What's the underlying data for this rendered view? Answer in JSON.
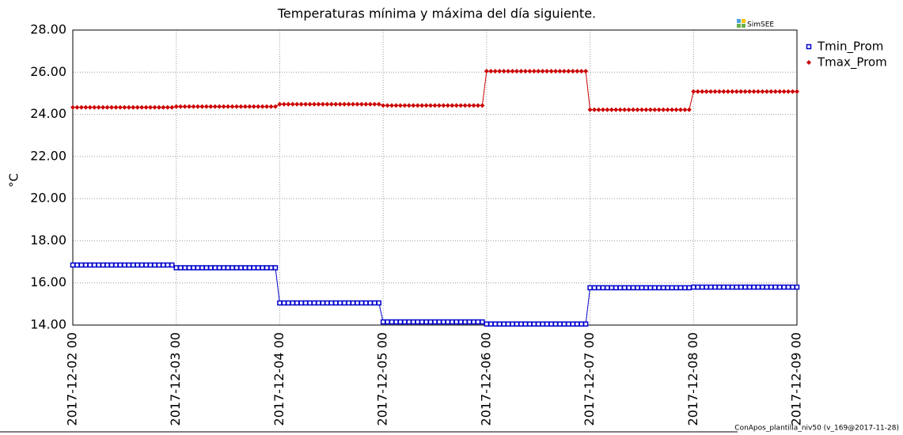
{
  "chart_data": {
    "type": "line",
    "title": "Temperaturas mínima y máxima del día siguiente.",
    "y_label": "°C",
    "logo": "SimSEE",
    "footer": "ConApos_plantilla_niv50 (v_169@2017-11-28)",
    "x": [
      "2017-12-02 00",
      "2017-12-02 01",
      "2017-12-02 02",
      "2017-12-02 03",
      "2017-12-02 04",
      "2017-12-02 05",
      "2017-12-02 06",
      "2017-12-02 07",
      "2017-12-02 08",
      "2017-12-02 09",
      "2017-12-02 10",
      "2017-12-02 11",
      "2017-12-02 12",
      "2017-12-02 13",
      "2017-12-02 14",
      "2017-12-02 15",
      "2017-12-02 16",
      "2017-12-02 17",
      "2017-12-02 18",
      "2017-12-02 19",
      "2017-12-02 20",
      "2017-12-02 21",
      "2017-12-02 22",
      "2017-12-02 23",
      "2017-12-03 00",
      "2017-12-03 01",
      "2017-12-03 02",
      "2017-12-03 03",
      "2017-12-03 04",
      "2017-12-03 05",
      "2017-12-03 06",
      "2017-12-03 07",
      "2017-12-03 08",
      "2017-12-03 09",
      "2017-12-03 10",
      "2017-12-03 11",
      "2017-12-03 12",
      "2017-12-03 13",
      "2017-12-03 14",
      "2017-12-03 15",
      "2017-12-03 16",
      "2017-12-03 17",
      "2017-12-03 18",
      "2017-12-03 19",
      "2017-12-03 20",
      "2017-12-03 21",
      "2017-12-03 22",
      "2017-12-03 23",
      "2017-12-04 00",
      "2017-12-04 01",
      "2017-12-04 02",
      "2017-12-04 03",
      "2017-12-04 04",
      "2017-12-04 05",
      "2017-12-04 06",
      "2017-12-04 07",
      "2017-12-04 08",
      "2017-12-04 09",
      "2017-12-04 10",
      "2017-12-04 11",
      "2017-12-04 12",
      "2017-12-04 13",
      "2017-12-04 14",
      "2017-12-04 15",
      "2017-12-04 16",
      "2017-12-04 17",
      "2017-12-04 18",
      "2017-12-04 19",
      "2017-12-04 20",
      "2017-12-04 21",
      "2017-12-04 22",
      "2017-12-04 23",
      "2017-12-05 00",
      "2017-12-05 01",
      "2017-12-05 02",
      "2017-12-05 03",
      "2017-12-05 04",
      "2017-12-05 05",
      "2017-12-05 06",
      "2017-12-05 07",
      "2017-12-05 08",
      "2017-12-05 09",
      "2017-12-05 10",
      "2017-12-05 11",
      "2017-12-05 12",
      "2017-12-05 13",
      "2017-12-05 14",
      "2017-12-05 15",
      "2017-12-05 16",
      "2017-12-05 17",
      "2017-12-05 18",
      "2017-12-05 19",
      "2017-12-05 20",
      "2017-12-05 21",
      "2017-12-05 22",
      "2017-12-05 23",
      "2017-12-06 00",
      "2017-12-06 01",
      "2017-12-06 02",
      "2017-12-06 03",
      "2017-12-06 04",
      "2017-12-06 05",
      "2017-12-06 06",
      "2017-12-06 07",
      "2017-12-06 08",
      "2017-12-06 09",
      "2017-12-06 10",
      "2017-12-06 11",
      "2017-12-06 12",
      "2017-12-06 13",
      "2017-12-06 14",
      "2017-12-06 15",
      "2017-12-06 16",
      "2017-12-06 17",
      "2017-12-06 18",
      "2017-12-06 19",
      "2017-12-06 20",
      "2017-12-06 21",
      "2017-12-06 22",
      "2017-12-06 23",
      "2017-12-07 00",
      "2017-12-07 01",
      "2017-12-07 02",
      "2017-12-07 03",
      "2017-12-07 04",
      "2017-12-07 05",
      "2017-12-07 06",
      "2017-12-07 07",
      "2017-12-07 08",
      "2017-12-07 09",
      "2017-12-07 10",
      "2017-12-07 11",
      "2017-12-07 12",
      "2017-12-07 13",
      "2017-12-07 14",
      "2017-12-07 15",
      "2017-12-07 16",
      "2017-12-07 17",
      "2017-12-07 18",
      "2017-12-07 19",
      "2017-12-07 20",
      "2017-12-07 21",
      "2017-12-07 22",
      "2017-12-07 23",
      "2017-12-08 00",
      "2017-12-08 01",
      "2017-12-08 02",
      "2017-12-08 03",
      "2017-12-08 04",
      "2017-12-08 05",
      "2017-12-08 06",
      "2017-12-08 07",
      "2017-12-08 08",
      "2017-12-08 09",
      "2017-12-08 10",
      "2017-12-08 11",
      "2017-12-08 12",
      "2017-12-08 13",
      "2017-12-08 14",
      "2017-12-08 15",
      "2017-12-08 16",
      "2017-12-08 17",
      "2017-12-08 18",
      "2017-12-08 19",
      "2017-12-08 20",
      "2017-12-08 21",
      "2017-12-08 22",
      "2017-12-08 23",
      "2017-12-09 00"
    ],
    "series": [
      {
        "name": "Tmin_Prom",
        "color": "#0000cc",
        "marker": "square",
        "values": [
          16.85,
          16.85,
          16.85,
          16.85,
          16.85,
          16.85,
          16.85,
          16.85,
          16.85,
          16.85,
          16.85,
          16.85,
          16.85,
          16.85,
          16.85,
          16.85,
          16.85,
          16.85,
          16.85,
          16.85,
          16.85,
          16.85,
          16.85,
          16.85,
          16.72,
          16.72,
          16.72,
          16.72,
          16.72,
          16.72,
          16.72,
          16.72,
          16.72,
          16.72,
          16.72,
          16.72,
          16.72,
          16.72,
          16.72,
          16.72,
          16.72,
          16.72,
          16.72,
          16.72,
          16.72,
          16.72,
          16.72,
          16.72,
          15.05,
          15.05,
          15.05,
          15.05,
          15.05,
          15.05,
          15.05,
          15.05,
          15.05,
          15.05,
          15.05,
          15.05,
          15.05,
          15.05,
          15.05,
          15.05,
          15.05,
          15.05,
          15.05,
          15.05,
          15.05,
          15.05,
          15.05,
          15.05,
          14.15,
          14.15,
          14.15,
          14.15,
          14.15,
          14.15,
          14.15,
          14.15,
          14.15,
          14.15,
          14.15,
          14.15,
          14.15,
          14.15,
          14.15,
          14.15,
          14.15,
          14.15,
          14.15,
          14.15,
          14.15,
          14.15,
          14.15,
          14.15,
          14.05,
          14.05,
          14.05,
          14.05,
          14.05,
          14.05,
          14.05,
          14.05,
          14.05,
          14.05,
          14.05,
          14.05,
          14.05,
          14.05,
          14.05,
          14.05,
          14.05,
          14.05,
          14.05,
          14.05,
          14.05,
          14.05,
          14.05,
          14.05,
          15.77,
          15.77,
          15.77,
          15.77,
          15.77,
          15.77,
          15.77,
          15.77,
          15.77,
          15.77,
          15.77,
          15.77,
          15.77,
          15.77,
          15.77,
          15.77,
          15.77,
          15.77,
          15.77,
          15.77,
          15.77,
          15.77,
          15.77,
          15.77,
          15.8,
          15.8,
          15.8,
          15.8,
          15.8,
          15.8,
          15.8,
          15.8,
          15.8,
          15.8,
          15.8,
          15.8,
          15.8,
          15.8,
          15.8,
          15.8,
          15.8,
          15.8,
          15.8,
          15.8,
          15.8,
          15.8,
          15.8,
          15.8,
          15.8
        ]
      },
      {
        "name": "Tmax_Prom",
        "color": "#cc0000",
        "marker": "diamond",
        "values": [
          24.33,
          24.33,
          24.33,
          24.33,
          24.33,
          24.33,
          24.33,
          24.33,
          24.33,
          24.33,
          24.33,
          24.33,
          24.33,
          24.33,
          24.33,
          24.33,
          24.33,
          24.33,
          24.33,
          24.33,
          24.33,
          24.33,
          24.33,
          24.33,
          24.37,
          24.37,
          24.37,
          24.37,
          24.37,
          24.37,
          24.37,
          24.37,
          24.37,
          24.37,
          24.37,
          24.37,
          24.37,
          24.37,
          24.37,
          24.37,
          24.37,
          24.37,
          24.37,
          24.37,
          24.37,
          24.37,
          24.37,
          24.37,
          24.48,
          24.48,
          24.48,
          24.48,
          24.48,
          24.48,
          24.48,
          24.48,
          24.48,
          24.48,
          24.48,
          24.48,
          24.48,
          24.48,
          24.48,
          24.48,
          24.48,
          24.48,
          24.48,
          24.48,
          24.48,
          24.48,
          24.48,
          24.48,
          24.42,
          24.42,
          24.42,
          24.42,
          24.42,
          24.42,
          24.42,
          24.42,
          24.42,
          24.42,
          24.42,
          24.42,
          24.42,
          24.42,
          24.42,
          24.42,
          24.42,
          24.42,
          24.42,
          24.42,
          24.42,
          24.42,
          24.42,
          24.42,
          26.05,
          26.05,
          26.05,
          26.05,
          26.05,
          26.05,
          26.05,
          26.05,
          26.05,
          26.05,
          26.05,
          26.05,
          26.05,
          26.05,
          26.05,
          26.05,
          26.05,
          26.05,
          26.05,
          26.05,
          26.05,
          26.05,
          26.05,
          26.05,
          24.22,
          24.22,
          24.22,
          24.22,
          24.22,
          24.22,
          24.22,
          24.22,
          24.22,
          24.22,
          24.22,
          24.22,
          24.22,
          24.22,
          24.22,
          24.22,
          24.22,
          24.22,
          24.22,
          24.22,
          24.22,
          24.22,
          24.22,
          24.22,
          25.08,
          25.08,
          25.08,
          25.08,
          25.08,
          25.08,
          25.08,
          25.08,
          25.08,
          25.08,
          25.08,
          25.08,
          25.08,
          25.08,
          25.08,
          25.08,
          25.08,
          25.08,
          25.08,
          25.08,
          25.08,
          25.08,
          25.08,
          25.08,
          25.08
        ]
      }
    ],
    "xtick_indices": [
      0,
      24,
      48,
      72,
      96,
      120,
      144,
      168
    ],
    "ylim": [
      14,
      28
    ],
    "yticks": [
      {
        "value": 14,
        "label": "14.00"
      },
      {
        "value": 16,
        "label": "16.00"
      },
      {
        "value": 18,
        "label": "18.00"
      },
      {
        "value": 20,
        "label": "20.00"
      },
      {
        "value": 22,
        "label": "22.00"
      },
      {
        "value": 24,
        "label": "24.00"
      },
      {
        "value": 26,
        "label": "26.00"
      },
      {
        "value": 28,
        "label": "28.00"
      }
    ],
    "grid": true,
    "legend": "right"
  }
}
